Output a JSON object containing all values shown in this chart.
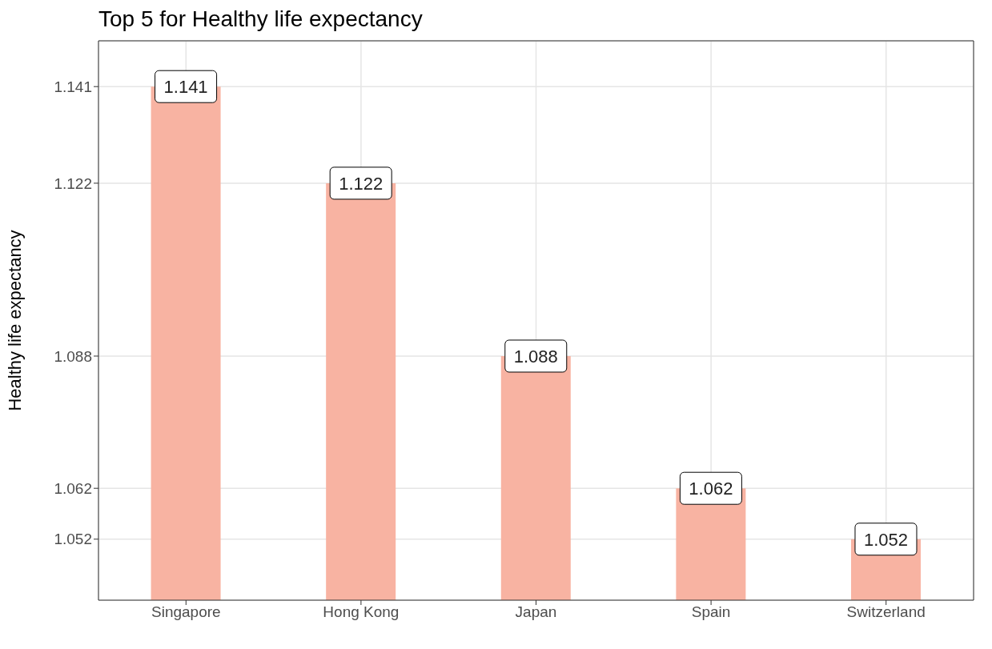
{
  "chart_data": {
    "type": "bar",
    "title": "Top 5 for Healthy life expectancy",
    "ylabel": "Healthy life expectancy",
    "categories": [
      "Singapore",
      "Hong Kong",
      "Japan",
      "Spain",
      "Switzerland"
    ],
    "values": [
      1.141,
      1.122,
      1.088,
      1.062,
      1.052
    ],
    "color": "#f8b3a2",
    "ylim": [
      1.04,
      1.15
    ],
    "yticks": [
      1.052,
      1.062,
      1.088,
      1.122,
      1.141
    ],
    "grid": true,
    "data_labels": true
  }
}
